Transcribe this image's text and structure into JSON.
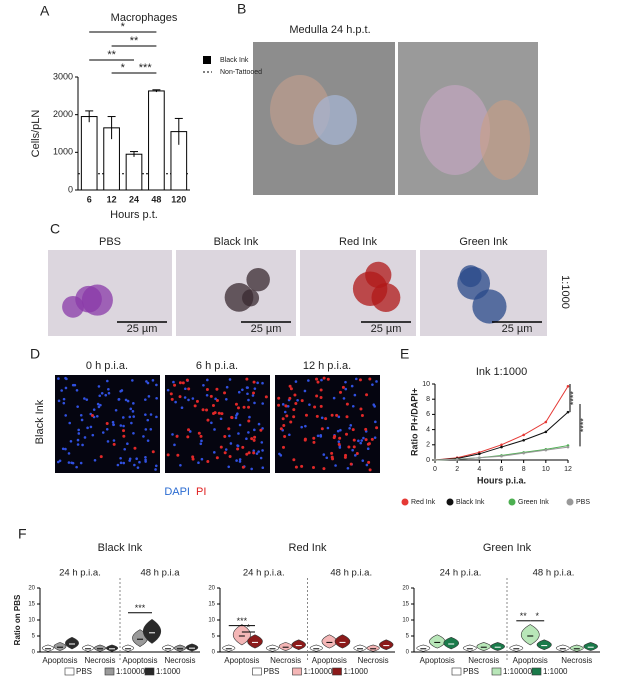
{
  "panel_labels": [
    "A",
    "B",
    "C",
    "D",
    "E",
    "F"
  ],
  "panel_b": {
    "title": "Medulla 24 h.p.t."
  },
  "panel_c": {
    "images": [
      {
        "title": "PBS",
        "scale_bar": "25 µm"
      },
      {
        "title": "Black Ink",
        "scale_bar": "25 µm"
      },
      {
        "title": "Red Ink",
        "scale_bar": "25 µm"
      },
      {
        "title": "Green Ink",
        "scale_bar": "25 µm"
      }
    ],
    "dilution": "1:1000"
  },
  "panel_d": {
    "images": [
      "0 h p.i.a.",
      "6 h p.i.a.",
      "12 h p.i.a."
    ],
    "row_label": "Black Ink",
    "stain_labels": [
      "DAPI",
      "PI"
    ]
  },
  "chart_data": [
    {
      "type": "bar",
      "title": "Macrophages",
      "categories": [
        "6",
        "12",
        "24",
        "48",
        "120"
      ],
      "values": [
        1950,
        1650,
        950,
        2630,
        1550
      ],
      "errors": [
        150,
        300,
        70,
        30,
        350
      ],
      "color": "#ffffff",
      "ylim": [
        0,
        3000
      ],
      "yticks": [
        0,
        1000,
        2000,
        3000
      ],
      "ylabel": "Cells/pLN",
      "xlabel": "Hours p.t.",
      "annotations": [
        "*",
        "**",
        "**",
        "*",
        "***"
      ],
      "legend": [
        "Black Ink",
        "Non-Tattooed"
      ],
      "reference_value": 430
    },
    {
      "type": "line",
      "title": "Ink 1:1000",
      "x": [
        0,
        2,
        4,
        6,
        8,
        10,
        12
      ],
      "series": [
        {
          "name": "Red Ink",
          "color": "#e53935",
          "values": [
            0,
            0.3,
            1,
            2,
            3.3,
            5,
            9.7
          ]
        },
        {
          "name": "Black Ink",
          "color": "#111111",
          "values": [
            0,
            0.2,
            0.8,
            1.7,
            2.6,
            3.7,
            6.3
          ]
        },
        {
          "name": "Green Ink",
          "color": "#4caf50",
          "values": [
            0,
            0.1,
            0.3,
            0.6,
            1,
            1.4,
            1.9
          ]
        },
        {
          "name": "PBS",
          "color": "#999999",
          "values": [
            0,
            0.1,
            0.3,
            0.5,
            0.9,
            1.3,
            1.7
          ]
        }
      ],
      "xlim": [
        0,
        12
      ],
      "ylim": [
        0,
        10
      ],
      "xticks": [
        0,
        2,
        4,
        6,
        8,
        10,
        12
      ],
      "yticks": [
        0,
        2,
        4,
        6,
        8,
        10
      ],
      "xlabel": "Hours p.i.a.",
      "ylabel": "Ratio PI+/DAPI+",
      "annotations": [
        "****",
        "****"
      ]
    },
    {
      "type": "violin",
      "title": "Black Ink",
      "subtitles": [
        "24 h p.i.a.",
        "48 h p.i.a"
      ],
      "categories": [
        "Apoptosis",
        "Necrosis",
        "Apoptosis",
        "Necrosis"
      ],
      "series": [
        {
          "name": "PBS",
          "color": "#ffffff",
          "values": [
            1,
            1,
            1,
            1
          ]
        },
        {
          "name": "1:10000",
          "color": "#9a9a9a",
          "values": [
            1.5,
            1,
            4,
            1
          ]
        },
        {
          "name": "1:1000",
          "color": "#2a2a2a",
          "values": [
            2.5,
            1,
            6,
            1.2
          ]
        }
      ],
      "ylim": [
        0,
        20
      ],
      "yticks": [
        0,
        5,
        10,
        15,
        20
      ],
      "ylabel": "Ratio on PBS",
      "annotations": [
        "***"
      ]
    },
    {
      "type": "violin",
      "title": "Red Ink",
      "subtitles": [
        "24 h p.i.a.",
        "48 h p.i.a."
      ],
      "categories": [
        "Apoptosis",
        "Necrosis",
        "Apoptosis",
        "Necrosis"
      ],
      "series": [
        {
          "name": "PBS",
          "color": "#ffffff",
          "values": [
            1,
            1,
            1,
            1
          ]
        },
        {
          "name": "1:10000",
          "color": "#f4b6b6",
          "values": [
            5,
            1.5,
            3,
            1
          ]
        },
        {
          "name": "1:1000",
          "color": "#8b1a1a",
          "values": [
            3,
            2,
            3,
            2
          ]
        }
      ],
      "ylim": [
        0,
        20
      ],
      "yticks": [
        0,
        5,
        10,
        15,
        20
      ],
      "annotations": [
        "***",
        "*"
      ]
    },
    {
      "type": "violin",
      "title": "Green Ink",
      "subtitles": [
        "24 h p.i.a.",
        "48 h p.i.a."
      ],
      "categories": [
        "Apoptosis",
        "Necrosis",
        "Apoptosis",
        "Necrosis"
      ],
      "series": [
        {
          "name": "PBS",
          "color": "#ffffff",
          "values": [
            1,
            1,
            1,
            1
          ]
        },
        {
          "name": "1:10000",
          "color": "#b8e6b8",
          "values": [
            3,
            1.5,
            5,
            1
          ]
        },
        {
          "name": "1:1000",
          "color": "#1a7a4a",
          "values": [
            2.5,
            1.5,
            2,
            1.5
          ]
        }
      ],
      "ylim": [
        0,
        20
      ],
      "yticks": [
        0,
        5,
        10,
        15,
        20
      ],
      "annotations": [
        "**",
        "*"
      ]
    }
  ]
}
